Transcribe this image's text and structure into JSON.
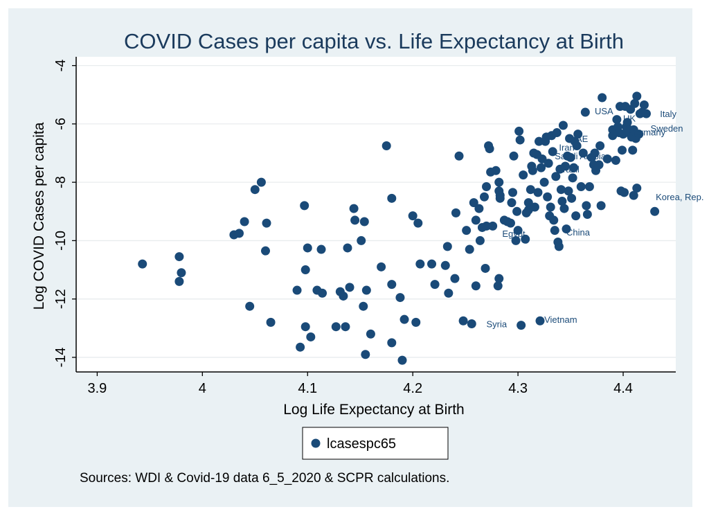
{
  "chart_data": {
    "type": "scatter",
    "title": "COVID Cases per capita vs. Life Expectancy at Birth",
    "xlabel": "Log Life Expectancy at Birth",
    "ylabel": "Log COVID Cases per capita",
    "xlim": [
      3.88,
      4.45
    ],
    "ylim": [
      -14.5,
      -3.7
    ],
    "xticks": [
      3.9,
      4,
      4.1,
      4.2,
      4.3,
      4.4
    ],
    "yticks": [
      -4,
      -6,
      -8,
      -10,
      -12,
      -14
    ],
    "grid": true,
    "legend": {
      "placement": "bottom-center",
      "entries": [
        "lcasespc65"
      ]
    },
    "note": "Sources: WDI & Covid-19 data 6_5_2020 & SCPR calculations.",
    "colors": {
      "marker": "#1a4a78",
      "background": "#eaf1f4",
      "plot": "#ffffff",
      "grid": "#e8ecee",
      "title": "#1a3a5c"
    },
    "series": [
      {
        "name": "lcasespc65",
        "points": [
          [
            3.943,
            -10.8
          ],
          [
            3.978,
            -10.55
          ],
          [
            3.978,
            -11.4
          ],
          [
            3.98,
            -11.1
          ],
          [
            4.03,
            -9.8
          ],
          [
            4.035,
            -9.75
          ],
          [
            4.04,
            -9.35
          ],
          [
            4.045,
            -12.25
          ],
          [
            4.05,
            -8.25
          ],
          [
            4.056,
            -8.0
          ],
          [
            4.06,
            -10.35
          ],
          [
            4.061,
            -9.4
          ],
          [
            4.065,
            -12.8
          ],
          [
            4.09,
            -11.7
          ],
          [
            4.093,
            -13.65
          ],
          [
            4.097,
            -8.8
          ],
          [
            4.098,
            -11.0
          ],
          [
            4.098,
            -12.95
          ],
          [
            4.1,
            -10.25
          ],
          [
            4.103,
            -13.3
          ],
          [
            4.109,
            -11.7
          ],
          [
            4.113,
            -10.3
          ],
          [
            4.114,
            -11.8
          ],
          [
            4.127,
            -12.95
          ],
          [
            4.131,
            -11.75
          ],
          [
            4.134,
            -11.9
          ],
          [
            4.136,
            -12.95
          ],
          [
            4.138,
            -10.25
          ],
          [
            4.14,
            -11.6
          ],
          [
            4.144,
            -8.9
          ],
          [
            4.145,
            -9.3
          ],
          [
            4.151,
            -10.0
          ],
          [
            4.153,
            -12.25
          ],
          [
            4.154,
            -9.35
          ],
          [
            4.155,
            -13.9
          ],
          [
            4.156,
            -11.7
          ],
          [
            4.16,
            -13.2
          ],
          [
            4.17,
            -10.9
          ],
          [
            4.175,
            -6.75
          ],
          [
            4.18,
            -8.55
          ],
          [
            4.18,
            -11.5
          ],
          [
            4.18,
            -13.5
          ],
          [
            4.188,
            -11.95
          ],
          [
            4.19,
            -14.1
          ],
          [
            4.192,
            -12.7
          ],
          [
            4.2,
            -9.15
          ],
          [
            4.203,
            -12.8
          ],
          [
            4.205,
            -9.4
          ],
          [
            4.207,
            -10.8
          ],
          [
            4.218,
            -10.8
          ],
          [
            4.221,
            -11.5
          ],
          [
            4.231,
            -10.85
          ],
          [
            4.233,
            -10.2
          ],
          [
            4.234,
            -11.8
          ],
          [
            4.24,
            -11.3
          ],
          [
            4.241,
            -9.05
          ],
          [
            4.244,
            -7.1
          ],
          [
            4.248,
            -12.75
          ],
          [
            4.251,
            -9.65
          ],
          [
            4.254,
            -10.3
          ],
          [
            4.256,
            -12.85
          ],
          [
            4.258,
            -8.7
          ],
          [
            4.26,
            -11.55
          ],
          [
            4.26,
            -9.3
          ],
          [
            4.263,
            -8.9
          ],
          [
            4.264,
            -10.0
          ],
          [
            4.266,
            -9.55
          ],
          [
            4.268,
            -8.5
          ],
          [
            4.269,
            -10.95
          ],
          [
            4.27,
            -9.5
          ],
          [
            4.27,
            -8.15
          ],
          [
            4.272,
            -6.75
          ],
          [
            4.273,
            -6.85
          ],
          [
            4.274,
            -7.65
          ],
          [
            4.276,
            -9.5
          ],
          [
            4.279,
            -7.6
          ],
          [
            4.281,
            -11.55
          ],
          [
            4.282,
            -8.0
          ],
          [
            4.282,
            -8.3
          ],
          [
            4.282,
            -11.3
          ],
          [
            4.283,
            -8.55
          ],
          [
            4.283,
            -8.45
          ],
          [
            4.287,
            -9.3
          ],
          [
            4.29,
            -9.35
          ],
          [
            4.293,
            -9.4
          ],
          [
            4.294,
            -8.7
          ],
          [
            4.295,
            -8.35
          ],
          [
            4.296,
            -7.1
          ],
          [
            4.298,
            -10.0
          ],
          [
            4.299,
            -9.0
          ],
          [
            4.3,
            -9.65
          ],
          [
            4.301,
            -6.25
          ],
          [
            4.302,
            -6.55
          ],
          [
            4.303,
            -12.9
          ],
          [
            4.305,
            -7.75
          ],
          [
            4.307,
            -9.95
          ],
          [
            4.308,
            -9.05
          ],
          [
            4.31,
            -8.7
          ],
          [
            4.31,
            -8.95
          ],
          [
            4.312,
            -8.25
          ],
          [
            4.313,
            -7.45
          ],
          [
            4.314,
            -7.6
          ],
          [
            4.315,
            -7.0
          ],
          [
            4.316,
            -8.85
          ],
          [
            4.318,
            -7.05
          ],
          [
            4.319,
            -8.35
          ],
          [
            4.32,
            -6.6
          ],
          [
            4.321,
            -12.75
          ],
          [
            4.322,
            -7.5
          ],
          [
            4.323,
            -7.2
          ],
          [
            4.325,
            -8.0
          ],
          [
            4.326,
            -6.6
          ],
          [
            4.327,
            -6.45
          ],
          [
            4.328,
            -8.5
          ],
          [
            4.329,
            -7.35
          ],
          [
            4.33,
            -9.15
          ],
          [
            4.331,
            -8.85
          ],
          [
            4.332,
            -6.4
          ],
          [
            4.333,
            -6.95
          ],
          [
            4.334,
            -9.3
          ],
          [
            4.335,
            -9.65
          ],
          [
            4.336,
            -7.8
          ],
          [
            4.337,
            -6.3
          ],
          [
            4.338,
            -10.05
          ],
          [
            4.339,
            -10.2
          ],
          [
            4.34,
            -7.55
          ],
          [
            4.341,
            -8.25
          ],
          [
            4.342,
            -8.65
          ],
          [
            4.343,
            -6.05
          ],
          [
            4.344,
            -8.9
          ],
          [
            4.345,
            -7.45
          ],
          [
            4.346,
            -9.6
          ],
          [
            4.347,
            -7.1
          ],
          [
            4.348,
            -8.3
          ],
          [
            4.349,
            -6.5
          ],
          [
            4.35,
            -7.15
          ],
          [
            4.351,
            -8.55
          ],
          [
            4.352,
            -7.85
          ],
          [
            4.353,
            -7.5
          ],
          [
            4.354,
            -6.6
          ],
          [
            4.355,
            -9.15
          ],
          [
            4.356,
            -6.75
          ],
          [
            4.357,
            -6.35
          ],
          [
            4.36,
            -8.15
          ],
          [
            4.362,
            -7.0
          ],
          [
            4.364,
            -5.6
          ],
          [
            4.365,
            -8.8
          ],
          [
            4.366,
            -9.1
          ],
          [
            4.368,
            -8.15
          ],
          [
            4.37,
            -7.15
          ],
          [
            4.372,
            -7.4
          ],
          [
            4.373,
            -7.0
          ],
          [
            4.374,
            -7.6
          ],
          [
            4.377,
            -7.4
          ],
          [
            4.378,
            -6.75
          ],
          [
            4.379,
            -8.8
          ],
          [
            4.38,
            -5.1
          ],
          [
            4.385,
            -7.2
          ],
          [
            4.39,
            -6.4
          ],
          [
            4.39,
            -6.2
          ],
          [
            4.393,
            -7.25
          ],
          [
            4.394,
            -5.85
          ],
          [
            4.395,
            -6.1
          ],
          [
            4.396,
            -6.3
          ],
          [
            4.397,
            -5.4
          ],
          [
            4.398,
            -8.3
          ],
          [
            4.399,
            -6.9
          ],
          [
            4.4,
            -6.35
          ],
          [
            4.401,
            -8.35
          ],
          [
            4.402,
            -5.4
          ],
          [
            4.403,
            -6.1
          ],
          [
            4.404,
            -5.95
          ],
          [
            4.405,
            -6.3
          ],
          [
            4.406,
            -6.2
          ],
          [
            4.407,
            -5.5
          ],
          [
            4.408,
            -6.45
          ],
          [
            4.409,
            -6.9
          ],
          [
            4.41,
            -6.2
          ],
          [
            4.41,
            -8.45
          ],
          [
            4.411,
            -5.3
          ],
          [
            4.412,
            -6.5
          ],
          [
            4.413,
            -8.2
          ],
          [
            4.413,
            -5.05
          ],
          [
            4.415,
            -6.35
          ],
          [
            4.416,
            -5.65
          ],
          [
            4.418,
            -5.6
          ],
          [
            4.42,
            -5.35
          ],
          [
            4.422,
            -5.65
          ],
          [
            4.43,
            -9.0
          ]
        ]
      }
    ],
    "annotations": [
      {
        "text": "Italy",
        "x": 4.435,
        "y": -5.65
      },
      {
        "text": "USA",
        "x": 4.373,
        "y": -5.55
      },
      {
        "text": "UK",
        "x": 4.4,
        "y": -5.8
      },
      {
        "text": "Sweden",
        "x": 4.426,
        "y": -6.15
      },
      {
        "text": "Germany",
        "x": 4.405,
        "y": -6.28
      },
      {
        "text": "UAE",
        "x": 4.349,
        "y": -6.5
      },
      {
        "text": "Iran",
        "x": 4.339,
        "y": -6.8
      },
      {
        "text": "Saudi Arabia",
        "x": 4.335,
        "y": -7.1
      },
      {
        "text": "Brazil",
        "x": 4.337,
        "y": -7.55
      },
      {
        "text": "Korea, Rep.",
        "x": 4.431,
        "y": -8.5
      },
      {
        "text": "Egypt",
        "x": 4.285,
        "y": -9.75
      },
      {
        "text": "China",
        "x": 4.346,
        "y": -9.7
      },
      {
        "text": "Syria",
        "x": 4.27,
        "y": -12.85
      },
      {
        "text": "Vietnam",
        "x": 4.325,
        "y": -12.7
      }
    ]
  }
}
